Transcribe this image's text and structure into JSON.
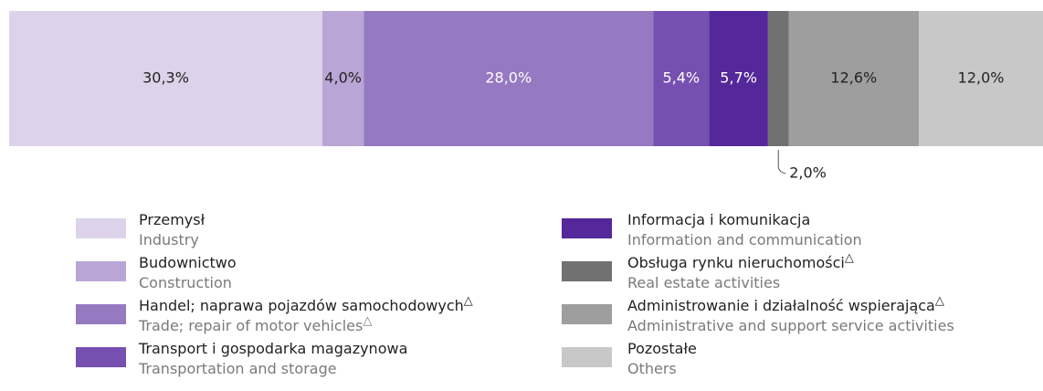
{
  "chart_data": {
    "type": "bar",
    "orientation": "horizontal",
    "stacked": true,
    "series": [
      {
        "name": "Przemysł",
        "subname": "Industry",
        "color": "#dcd3ea",
        "values": [
          30.3
        ],
        "value_labels": [
          "30,3%"
        ]
      },
      {
        "name": "Budownictwo",
        "subname": "Construction",
        "color": "#b9a6d6",
        "values": [
          4.0
        ],
        "value_labels": [
          "4,0%"
        ]
      },
      {
        "name": "Handel; naprawa pojazdów samochodowych",
        "name_mark": "△",
        "subname": "Trade; repair of motor vehicles",
        "subname_mark": "△",
        "color": "#9579c1",
        "values": [
          28.0
        ],
        "value_labels": [
          "28,0%"
        ]
      },
      {
        "name": "Transport i gospodarka magazynowa",
        "subname": "Transportation and storage",
        "color": "#7550b0",
        "values": [
          5.4
        ],
        "value_labels": [
          "5,4%"
        ]
      },
      {
        "name": "Informacja i komunikacja",
        "subname": "Information and communication",
        "color": "#54289a",
        "values": [
          5.7
        ],
        "value_labels": [
          "5,7%"
        ]
      },
      {
        "name": "Obsługa rynku nieruchomości",
        "name_mark": "△",
        "subname": "Real estate activities",
        "color": "#717171",
        "values": [
          2.0
        ],
        "value_labels": [
          "2,0%"
        ]
      },
      {
        "name": "Administrowanie i działalność wspierająca",
        "name_mark": "△",
        "subname": "Administrative and support service activities",
        "color": "#9e9e9e",
        "values": [
          12.6
        ],
        "value_labels": [
          "12,6%"
        ]
      },
      {
        "name": "Pozostałe",
        "subname": "Others",
        "color": "#c8c8c8",
        "values": [
          12.0
        ],
        "value_labels": [
          "12,0%"
        ]
      }
    ]
  }
}
